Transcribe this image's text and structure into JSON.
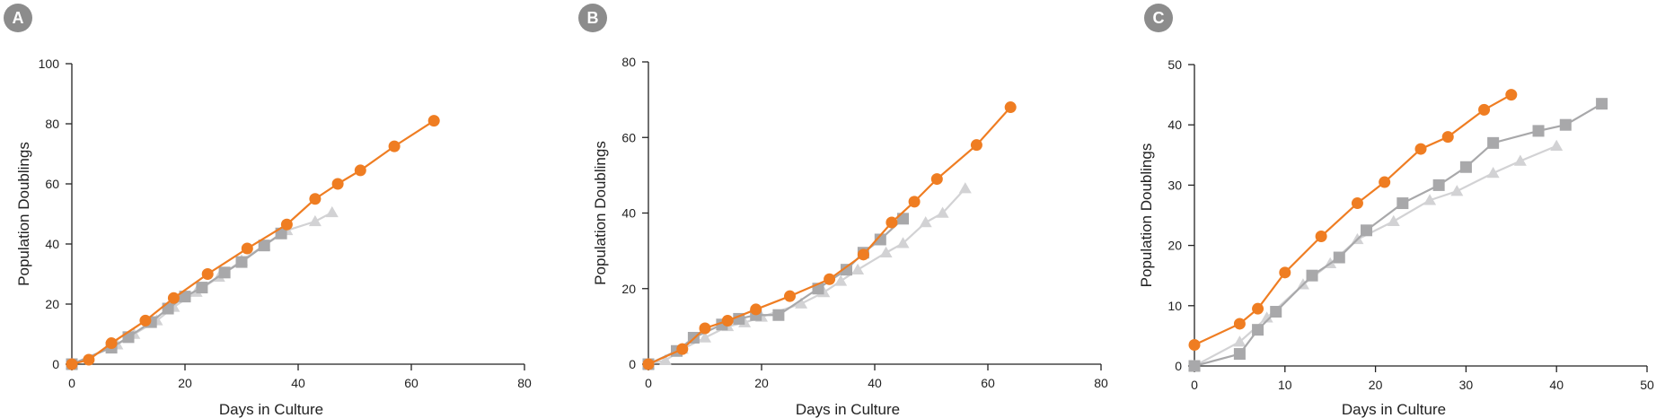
{
  "panels": [
    {
      "id": "A",
      "badge": "A",
      "xlabel": "Days in Culture",
      "ylabel": "Population Doublings",
      "xlim": [
        0,
        80
      ],
      "ylim": [
        0,
        100
      ],
      "xticks": [
        0,
        20,
        40,
        60,
        80
      ],
      "yticks": [
        0,
        20,
        40,
        60,
        80,
        100
      ]
    },
    {
      "id": "B",
      "badge": "B",
      "xlabel": "Days in Culture",
      "ylabel": "Population Doublings",
      "xlim": [
        0,
        80
      ],
      "ylim": [
        0,
        80
      ],
      "xticks": [
        0,
        20,
        40,
        60,
        80
      ],
      "yticks": [
        0,
        20,
        40,
        60,
        80
      ]
    },
    {
      "id": "C",
      "badge": "C",
      "xlabel": "Days in Culture",
      "ylabel": "Population Doublings",
      "xlim": [
        0,
        50
      ],
      "ylim": [
        0,
        50
      ],
      "xticks": [
        0,
        10,
        20,
        30,
        40,
        50
      ],
      "yticks": [
        0,
        10,
        20,
        30,
        40,
        50
      ]
    }
  ],
  "chart_data": [
    {
      "type": "line",
      "xlabel": "Days in Culture",
      "ylabel": "Population Doublings",
      "xlim": [
        0,
        80
      ],
      "ylim": [
        0,
        100
      ],
      "grid": false,
      "series": [
        {
          "marker": "circle",
          "color": "#ef7d22",
          "x": [
            0,
            3,
            7,
            13,
            18,
            24,
            31,
            38,
            43,
            47,
            51,
            57,
            64
          ],
          "y": [
            0,
            1.5,
            7,
            14.5,
            22,
            30,
            38.5,
            46.5,
            55,
            60,
            64.5,
            72.5,
            81
          ]
        },
        {
          "marker": "square",
          "color": "#a8a8aa",
          "x": [
            0,
            7,
            10,
            14,
            17,
            20,
            23,
            27,
            30,
            34,
            37
          ],
          "y": [
            0,
            5.5,
            9,
            14,
            18.5,
            22.5,
            25.5,
            30.5,
            34,
            39.5,
            43.5
          ]
        },
        {
          "marker": "triangle",
          "color": "#d2d2d4",
          "x": [
            0,
            8,
            11,
            15,
            18,
            22,
            26,
            30,
            34,
            38,
            43,
            46
          ],
          "y": [
            0,
            6.5,
            10,
            14.5,
            19,
            24,
            29,
            34.5,
            39.5,
            44.5,
            47.5,
            50.5
          ]
        }
      ]
    },
    {
      "type": "line",
      "xlabel": "Days in Culture",
      "ylabel": "Population Doublings",
      "xlim": [
        0,
        80
      ],
      "ylim": [
        0,
        80
      ],
      "grid": false,
      "series": [
        {
          "marker": "circle",
          "color": "#ef7d22",
          "x": [
            0,
            6,
            10,
            14,
            19,
            25,
            32,
            38,
            43,
            47,
            51,
            58,
            64
          ],
          "y": [
            0,
            4,
            9.5,
            11.5,
            14.5,
            18,
            22.5,
            29,
            37.5,
            43,
            49,
            58,
            68
          ]
        },
        {
          "marker": "square",
          "color": "#a8a8aa",
          "x": [
            0,
            5,
            8,
            13,
            16,
            19,
            23,
            30,
            35,
            38,
            41,
            45
          ],
          "y": [
            0,
            3.5,
            7,
            10.5,
            12,
            13,
            13,
            20,
            25,
            29.5,
            33,
            38.5
          ]
        },
        {
          "marker": "triangle",
          "color": "#d2d2d4",
          "x": [
            0,
            3,
            6,
            10,
            14,
            17,
            20,
            27,
            31,
            34,
            37,
            42,
            45,
            49,
            52,
            56
          ],
          "y": [
            0,
            1,
            4,
            7,
            10,
            11,
            12.5,
            16,
            19,
            22,
            25,
            29.5,
            32,
            37.5,
            40,
            46.5
          ]
        }
      ]
    },
    {
      "type": "line",
      "xlabel": "Days in Culture",
      "ylabel": "Population Doublings",
      "xlim": [
        0,
        50
      ],
      "ylim": [
        0,
        50
      ],
      "grid": false,
      "series": [
        {
          "marker": "circle",
          "color": "#ef7d22",
          "x": [
            0,
            5,
            7,
            10,
            14,
            18,
            21,
            25,
            28,
            32,
            35
          ],
          "y": [
            3.5,
            7,
            9.5,
            15.5,
            21.5,
            27,
            30.5,
            36,
            38,
            42.5,
            45
          ]
        },
        {
          "marker": "square",
          "color": "#a8a8aa",
          "x": [
            0,
            5,
            7,
            9,
            13,
            16,
            19,
            23,
            27,
            30,
            33,
            38,
            41,
            45
          ],
          "y": [
            0,
            2,
            6,
            9,
            15,
            18,
            22.5,
            27,
            30,
            33,
            37,
            39,
            40,
            43.5
          ]
        },
        {
          "marker": "triangle",
          "color": "#d2d2d4",
          "x": [
            0,
            5,
            8,
            12,
            15,
            18,
            22,
            26,
            29,
            33,
            36,
            40
          ],
          "y": [
            0,
            4,
            8,
            13.5,
            17,
            21,
            24,
            27.5,
            29,
            32,
            34,
            36.5
          ]
        }
      ]
    }
  ]
}
